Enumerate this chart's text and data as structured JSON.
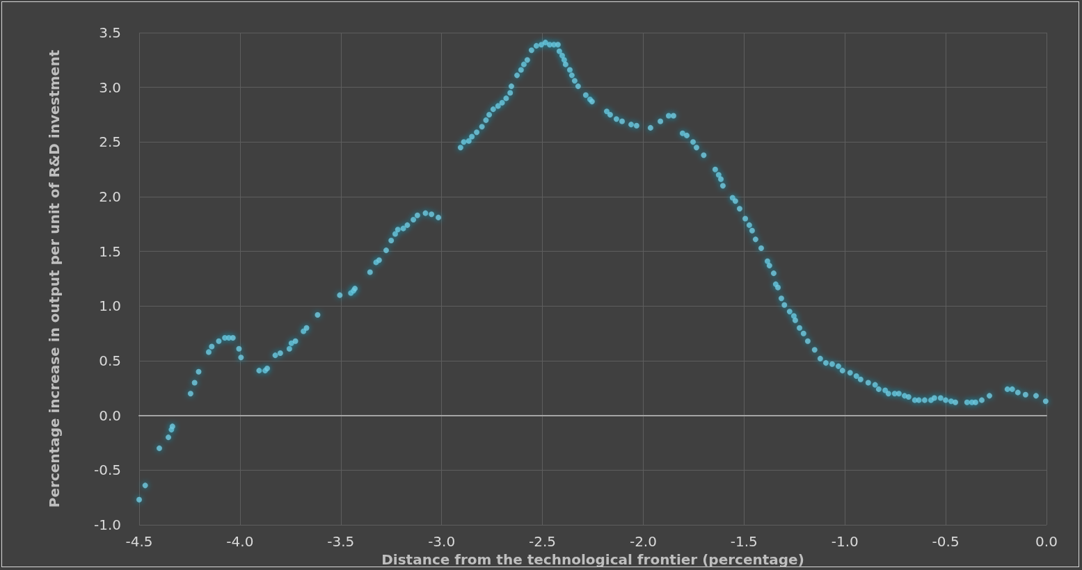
{
  "chart_data": {
    "type": "scatter",
    "xlabel": "Distance from the technological frontier (percentage)",
    "ylabel": "Percentage increase in output per unit of R&D investment",
    "xlim": [
      -4.5,
      0
    ],
    "xticks": [
      -4.5,
      {
        "value": -4,
        "label": "-4.0"
      },
      -3.5,
      {
        "value": -3,
        "label": "-3.0"
      },
      -2.5,
      {
        "value": -2,
        "label": "-2.0"
      },
      -1.5,
      {
        "value": -1,
        "label": "-1.0"
      },
      -0.5,
      {
        "value": 0,
        "label": "0.0"
      }
    ],
    "ylim": [
      -1,
      3.5
    ],
    "yticks": [
      {
        "value": -1,
        "label": "-1.0"
      },
      -0.5,
      {
        "value": 0,
        "label": "0.0"
      },
      0.5,
      {
        "value": 1,
        "label": "1.0"
      },
      1.5,
      {
        "value": 2,
        "label": "2.0"
      },
      2.5,
      {
        "value": 3,
        "label": "3.0"
      },
      3.5
    ],
    "grid": true,
    "marker": "circle",
    "series": [
      {
        "color": "#6fcbe0",
        "x": [
          -4.5,
          -4.47,
          -4.4,
          -4.355,
          -4.34,
          -4.335,
          -4.245,
          -4.225,
          -4.205,
          -4.155,
          -4.14,
          -4.105,
          -4.075,
          -4.055,
          -4.035,
          -4.005,
          -3.995,
          -3.905,
          -3.875,
          -3.865,
          -3.825,
          -3.8,
          -3.755,
          -3.745,
          -3.725,
          -3.685,
          -3.67,
          -3.615,
          -3.505,
          -3.45,
          -3.437,
          -3.43,
          -3.355,
          -3.325,
          -3.31,
          -3.275,
          -3.25,
          -3.23,
          -3.217,
          -3.19,
          -3.17,
          -3.14,
          -3.12,
          -3.08,
          -3.05,
          -3.016,
          -2.906,
          -2.89,
          -2.865,
          -2.85,
          -2.826,
          -2.8,
          -2.78,
          -2.764,
          -2.744,
          -2.72,
          -2.7,
          -2.68,
          -2.66,
          -2.654,
          -2.626,
          -2.606,
          -2.592,
          -2.575,
          -2.554,
          -2.53,
          -2.505,
          -2.485,
          -2.464,
          -2.443,
          -2.423,
          -2.416,
          -2.402,
          -2.392,
          -2.385,
          -2.364,
          -2.354,
          -2.34,
          -2.323,
          -2.285,
          -2.264,
          -2.254,
          -2.181,
          -2.164,
          -2.133,
          -2.105,
          -2.06,
          -2.033,
          -1.964,
          -1.915,
          -1.874,
          -1.85,
          -1.805,
          -1.784,
          -1.753,
          -1.736,
          -1.7,
          -1.643,
          -1.626,
          -1.615,
          -1.605,
          -1.557,
          -1.543,
          -1.522,
          -1.494,
          -1.474,
          -1.46,
          -1.443,
          -1.415,
          -1.384,
          -1.374,
          -1.353,
          -1.343,
          -1.332,
          -1.315,
          -1.3,
          -1.274,
          -1.253,
          -1.246,
          -1.225,
          -1.205,
          -1.184,
          -1.15,
          -1.122,
          -1.094,
          -1.063,
          -1.032,
          -1.012,
          -0.974,
          -0.943,
          -0.922,
          -0.884,
          -0.85,
          -0.832,
          -0.8,
          -0.784,
          -0.753,
          -0.732,
          -0.704,
          -0.684,
          -0.653,
          -0.633,
          -0.604,
          -0.573,
          -0.556,
          -0.525,
          -0.5,
          -0.473,
          -0.452,
          -0.394,
          -0.37,
          -0.352,
          -0.321,
          -0.283,
          -0.194,
          -0.17,
          -0.142,
          -0.104,
          -0.052,
          -0.004
        ],
        "values": [
          -0.77,
          -0.64,
          -0.3,
          -0.2,
          -0.13,
          -0.1,
          0.2,
          0.3,
          0.4,
          0.58,
          0.63,
          0.68,
          0.71,
          0.71,
          0.71,
          0.61,
          0.53,
          0.41,
          0.41,
          0.43,
          0.55,
          0.57,
          0.61,
          0.66,
          0.68,
          0.77,
          0.8,
          0.92,
          1.1,
          1.12,
          1.14,
          1.16,
          1.31,
          1.4,
          1.42,
          1.51,
          1.6,
          1.66,
          1.7,
          1.71,
          1.74,
          1.79,
          1.83,
          1.85,
          1.84,
          1.81,
          2.45,
          2.5,
          2.51,
          2.55,
          2.59,
          2.64,
          2.7,
          2.75,
          2.8,
          2.83,
          2.86,
          2.9,
          2.95,
          3.01,
          3.11,
          3.16,
          3.21,
          3.25,
          3.34,
          3.38,
          3.39,
          3.41,
          3.39,
          3.39,
          3.39,
          3.33,
          3.29,
          3.25,
          3.21,
          3.16,
          3.11,
          3.06,
          3.01,
          2.93,
          2.89,
          2.87,
          2.78,
          2.75,
          2.71,
          2.69,
          2.66,
          2.65,
          2.63,
          2.69,
          2.74,
          2.74,
          2.58,
          2.56,
          2.5,
          2.45,
          2.38,
          2.25,
          2.2,
          2.16,
          2.1,
          1.99,
          1.96,
          1.89,
          1.8,
          1.74,
          1.69,
          1.61,
          1.53,
          1.41,
          1.37,
          1.3,
          1.2,
          1.17,
          1.07,
          1.01,
          0.95,
          0.91,
          0.87,
          0.8,
          0.75,
          0.68,
          0.6,
          0.52,
          0.48,
          0.47,
          0.45,
          0.41,
          0.39,
          0.36,
          0.33,
          0.3,
          0.28,
          0.24,
          0.23,
          0.2,
          0.2,
          0.2,
          0.18,
          0.17,
          0.14,
          0.14,
          0.14,
          0.14,
          0.16,
          0.16,
          0.14,
          0.13,
          0.12,
          0.12,
          0.12,
          0.12,
          0.14,
          0.18,
          0.24,
          0.24,
          0.21,
          0.19,
          0.18,
          0.13
        ]
      }
    ]
  }
}
